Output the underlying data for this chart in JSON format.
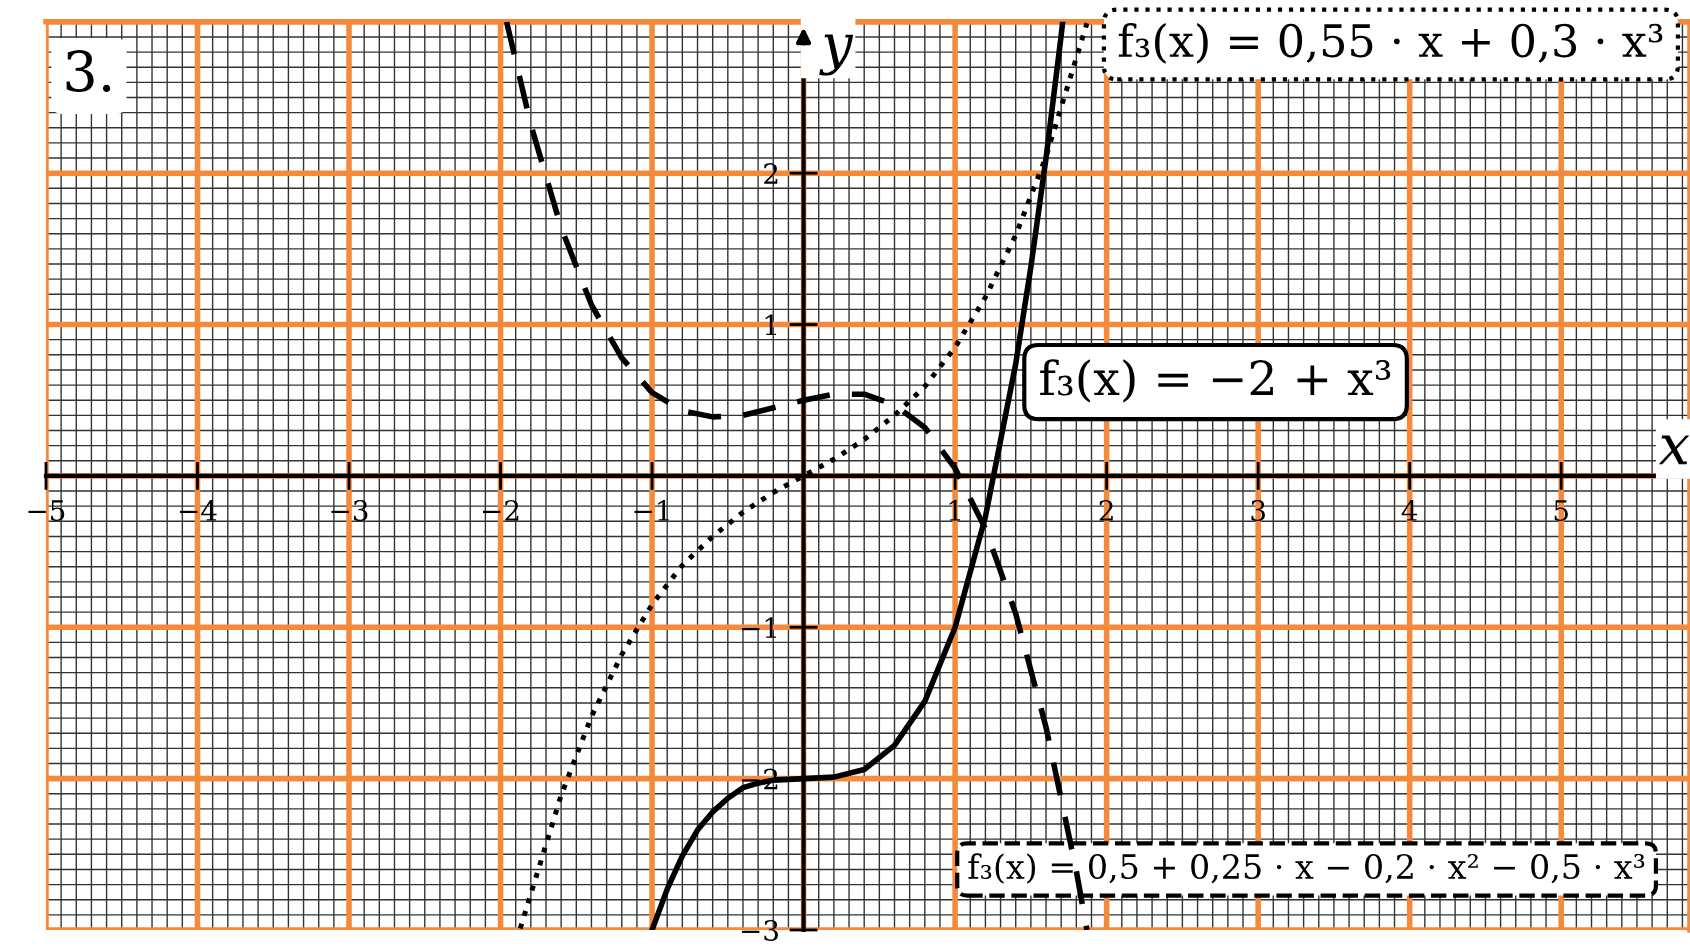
{
  "chart_data": {
    "type": "line",
    "xlabel": "x",
    "ylabel": "y",
    "annotations": [
      "3."
    ],
    "xlim": [
      -5,
      5.85
    ],
    "ylim": [
      -3,
      3
    ],
    "xticks": [
      {
        "value": -5,
        "label": "−5"
      },
      {
        "value": -4,
        "label": "−4"
      },
      {
        "value": -3,
        "label": "−3"
      },
      {
        "value": -2,
        "label": "−2"
      },
      {
        "value": -1,
        "label": "−1"
      },
      1,
      2,
      3,
      4,
      5
    ],
    "yticks": [
      {
        "value": -3,
        "label": "−3"
      },
      {
        "value": -2,
        "label": "−2"
      },
      {
        "value": -1,
        "label": "−1"
      },
      1,
      2
    ],
    "grid": true,
    "marker": "none",
    "series": [
      {
        "name": "f₃(x) = −2 + x³",
        "color": "#000000",
        "line_style": "solid",
        "x": [
          -1,
          -0.9,
          -0.8,
          -0.7,
          -0.6,
          -0.5,
          -0.4,
          -0.3,
          -0.2,
          0,
          0.2,
          0.4,
          0.6,
          0.8,
          1.0,
          1.2,
          1.4,
          1.5,
          1.6,
          1.7,
          1.71
        ],
        "values": [
          -3,
          -2.73,
          -2.51,
          -2.34,
          -2.22,
          -2.13,
          -2.06,
          -2.03,
          -2.01,
          -2,
          -1.99,
          -1.94,
          -1.78,
          -1.49,
          -1,
          -0.27,
          0.74,
          1.38,
          2.1,
          2.91,
          3.0
        ]
      },
      {
        "name": "f₃(x) = 0,55 · x + 0,3 · x³",
        "color": "#000000",
        "line_style": "dotted",
        "x": [
          -1.87,
          -1.6,
          -1.4,
          -1.2,
          -1.0,
          -0.8,
          -0.6,
          -0.4,
          -0.2,
          0,
          0.2,
          0.4,
          0.6,
          0.8,
          1.0,
          1.2,
          1.4,
          1.6,
          1.87
        ],
        "values": [
          -2.99,
          -2.11,
          -1.59,
          -1.18,
          -0.85,
          -0.59,
          -0.4,
          -0.24,
          -0.11,
          0,
          0.11,
          0.24,
          0.4,
          0.59,
          0.85,
          1.18,
          1.59,
          2.11,
          2.99
        ]
      },
      {
        "name": "f₃(x) = 0,5 + 0,25 · x − 0,2 · x² − 0,5 · x³",
        "color": "#000000",
        "line_style": "dashed",
        "x": [
          -1.96,
          -1.8,
          -1.6,
          -1.4,
          -1.2,
          -1.0,
          -0.8,
          -0.6,
          -0.4,
          -0.2,
          0,
          0.2,
          0.4,
          0.6,
          0.8,
          1.0,
          1.2,
          1.4,
          1.6,
          1.8,
          1.87
        ],
        "values": [
          3.0,
          2.32,
          1.64,
          1.13,
          0.78,
          0.55,
          0.43,
          0.39,
          0.4,
          0.45,
          0.5,
          0.54,
          0.54,
          0.47,
          0.32,
          0.05,
          -0.35,
          -0.91,
          -1.66,
          -2.61,
          -3.0
        ]
      }
    ]
  }
}
